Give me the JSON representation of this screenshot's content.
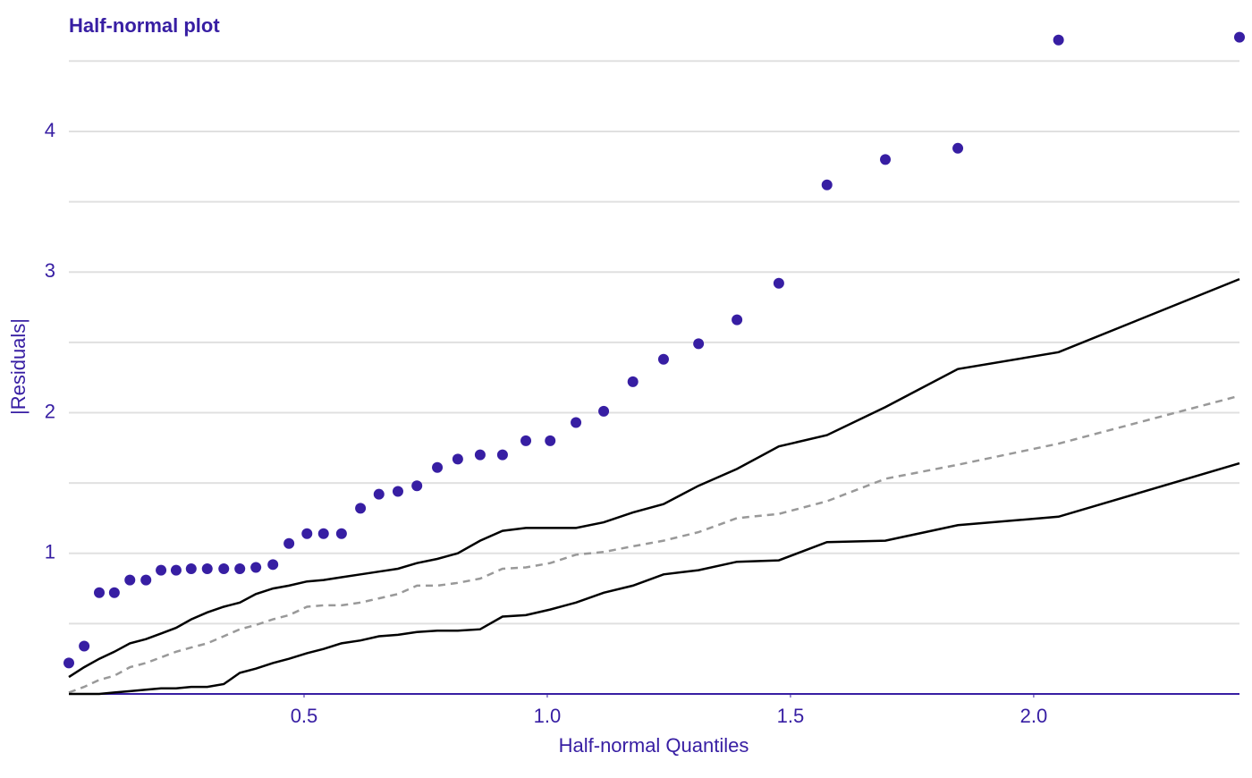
{
  "chart_data": {
    "type": "scatter",
    "title": "Half-normal plot",
    "x_label": "Half-normal Quantiles",
    "y_label": "|Residuals|",
    "x": [
      0.0165,
      0.048,
      0.079,
      0.11,
      0.142,
      0.175,
      0.206,
      0.237,
      0.268,
      0.301,
      0.335,
      0.368,
      0.401,
      0.436,
      0.469,
      0.506,
      0.54,
      0.577,
      0.616,
      0.654,
      0.693,
      0.732,
      0.774,
      0.816,
      0.862,
      0.908,
      0.956,
      1.006,
      1.059,
      1.116,
      1.176,
      1.239,
      1.311,
      1.39,
      1.476,
      1.575,
      1.695,
      1.844,
      2.051,
      2.423
    ],
    "series": [
      {
        "style": "line",
        "color": "#000000",
        "values": [
          0.12,
          0.19,
          0.25,
          0.3,
          0.36,
          0.39,
          0.43,
          0.47,
          0.53,
          0.58,
          0.62,
          0.65,
          0.71,
          0.75,
          0.77,
          0.8,
          0.81,
          0.83,
          0.85,
          0.87,
          0.89,
          0.93,
          0.96,
          1.0,
          1.09,
          1.16,
          1.18,
          1.18,
          1.18,
          1.22,
          1.29,
          1.35,
          1.48,
          1.6,
          1.76,
          1.84,
          2.04,
          2.31,
          2.43,
          2.95
        ]
      },
      {
        "style": "dashed",
        "color": "#999999",
        "values": [
          0.01,
          0.05,
          0.1,
          0.13,
          0.19,
          0.22,
          0.26,
          0.3,
          0.33,
          0.36,
          0.41,
          0.46,
          0.49,
          0.53,
          0.56,
          0.62,
          0.63,
          0.63,
          0.65,
          0.68,
          0.71,
          0.77,
          0.77,
          0.79,
          0.82,
          0.89,
          0.9,
          0.93,
          0.99,
          1.01,
          1.05,
          1.09,
          1.15,
          1.25,
          1.28,
          1.37,
          1.53,
          1.63,
          1.78,
          2.12
        ]
      },
      {
        "style": "line",
        "color": "#000000",
        "values": [
          0,
          0,
          0,
          0.01,
          0.02,
          0.03,
          0.04,
          0.04,
          0.05,
          0.05,
          0.07,
          0.15,
          0.18,
          0.22,
          0.25,
          0.29,
          0.32,
          0.36,
          0.38,
          0.41,
          0.42,
          0.44,
          0.45,
          0.45,
          0.46,
          0.55,
          0.56,
          0.6,
          0.65,
          0.72,
          0.77,
          0.85,
          0.88,
          0.94,
          0.95,
          1.08,
          1.09,
          1.2,
          1.26,
          1.64
        ]
      },
      {
        "style": "points",
        "color": "#371ea3",
        "values": [
          0.22,
          0.34,
          0.72,
          0.72,
          0.81,
          0.81,
          0.88,
          0.88,
          0.89,
          0.89,
          0.89,
          0.89,
          0.9,
          0.92,
          1.07,
          1.14,
          1.14,
          1.14,
          1.32,
          1.42,
          1.44,
          1.48,
          1.61,
          1.67,
          1.7,
          1.7,
          1.8,
          1.8,
          1.93,
          2.01,
          2.22,
          2.38,
          2.49,
          2.66,
          2.92,
          3.62,
          3.8,
          3.88,
          4.65,
          4.67
        ]
      }
    ],
    "xlim": [
      0.0165,
      2.423
    ],
    "ylim": [
      0,
      4.68
    ],
    "xticks": [
      0.5,
      {
        "value": 1,
        "label": "1.0"
      },
      1.5,
      {
        "value": 2,
        "label": "2.0"
      }
    ],
    "yticks": [
      1,
      2,
      3,
      4
    ],
    "yminor": [
      0.5,
      1.5,
      2.5,
      3.5,
      4.5
    ],
    "grid": true,
    "text_color": "#371ea3"
  }
}
